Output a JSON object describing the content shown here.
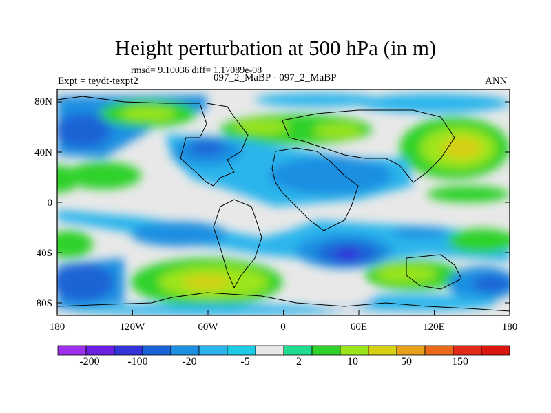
{
  "title": "Height perturbation at 500 hPa (in m)",
  "stats": "rmsd= 9.10036 diff= 1.17089e-08",
  "left_label": "Expt = teydt-texpt2",
  "case_label": "097_2_MaBP - 097_2_MaBP",
  "season": "ANN",
  "lat_labels": [
    "80N",
    "40N",
    "0",
    "40S",
    "80S"
  ],
  "lon_labels": [
    "180",
    "120W",
    "60W",
    "0",
    "60E",
    "120E",
    "180"
  ],
  "colorbar": {
    "colors": [
      "#9d2fef",
      "#6a1ee2",
      "#3233d8",
      "#1a63d6",
      "#1d8fe1",
      "#2cb5ec",
      "#1ecbe6",
      "#e8e8e8",
      "#1fdb8e",
      "#2fd22a",
      "#9be51d",
      "#d7cf12",
      "#e6a01a",
      "#eb6a1c",
      "#e12b17",
      "#d9170f"
    ],
    "labels": [
      "-200",
      "-100",
      "-20",
      "-5",
      "2",
      "10",
      "50",
      "150"
    ]
  }
}
